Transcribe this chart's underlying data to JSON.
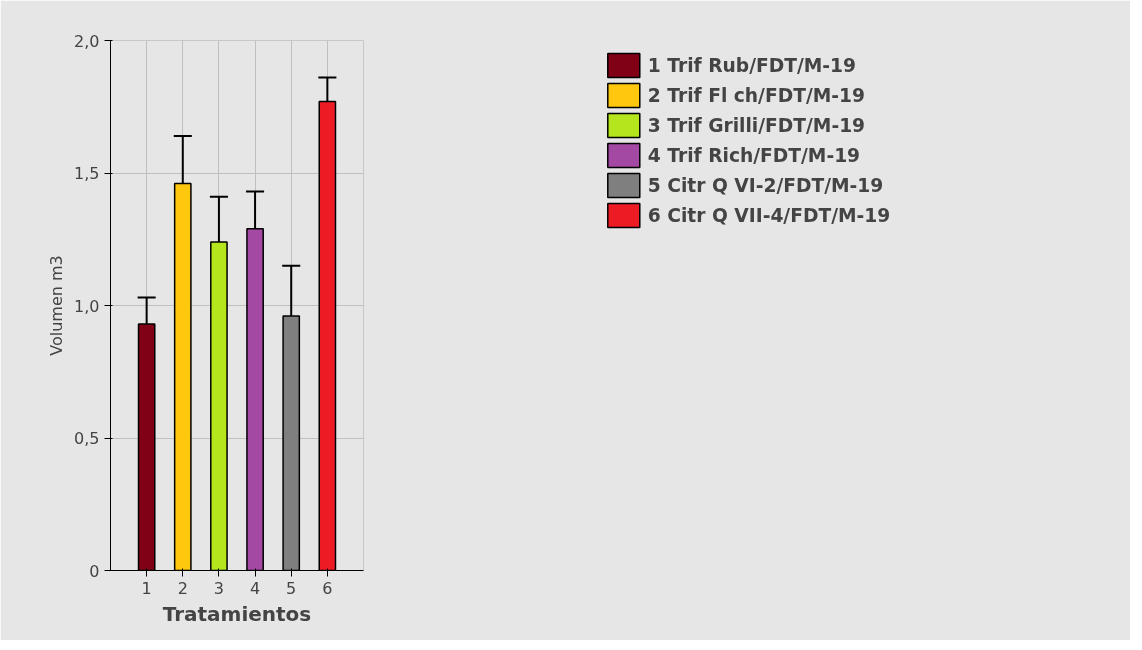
{
  "chart_data": {
    "type": "bar",
    "xlabel": "Tratamientos",
    "ylabel": "Volumen m3",
    "xlim": [
      0,
      7
    ],
    "xticks": [
      1,
      2,
      3,
      4,
      5,
      6
    ],
    "ylim": [
      0,
      2.0
    ],
    "yticks": [
      0,
      {
        "value": 0.5,
        "label": "0,5"
      },
      {
        "value": 1.0,
        "label": "1,0"
      },
      {
        "value": 1.5,
        "label": "1,5"
      },
      {
        "value": 2.0,
        "label": "2,0"
      }
    ],
    "grid": true,
    "legend": "top right",
    "series": [
      {
        "name": "1 Trif Rub/FDT/M-19",
        "color": "#800016",
        "x": [
          1
        ],
        "values": [
          0.93
        ],
        "errors": [
          [
            0.93,
            1.03
          ]
        ]
      },
      {
        "name": "2 Trif Fl ch/FDT/M-19",
        "color": "#ffc80e",
        "x": [
          2
        ],
        "values": [
          1.46
        ],
        "errors": [
          [
            1.46,
            1.64
          ]
        ]
      },
      {
        "name": "3 Trif Grilli/FDT/M-19",
        "color": "#b5e61d",
        "x": [
          3
        ],
        "values": [
          1.24
        ],
        "errors": [
          [
            1.24,
            1.41
          ]
        ]
      },
      {
        "name": "4 Trif Rich/FDT/M-19",
        "color": "#a349a4",
        "x": [
          4
        ],
        "values": [
          1.29
        ],
        "errors": [
          [
            1.29,
            1.43
          ]
        ]
      },
      {
        "name": "5 Citr Q VI-2/FDT/M-19",
        "color": "#7f7f7f",
        "x": [
          5
        ],
        "values": [
          0.96
        ],
        "errors": [
          [
            0.96,
            1.15
          ]
        ]
      },
      {
        "name": "6 Citr Q VII-4/FDT/M-19",
        "color": "#ed1c24",
        "x": [
          6
        ],
        "values": [
          1.77
        ],
        "errors": [
          [
            1.77,
            1.86
          ]
        ]
      }
    ]
  }
}
